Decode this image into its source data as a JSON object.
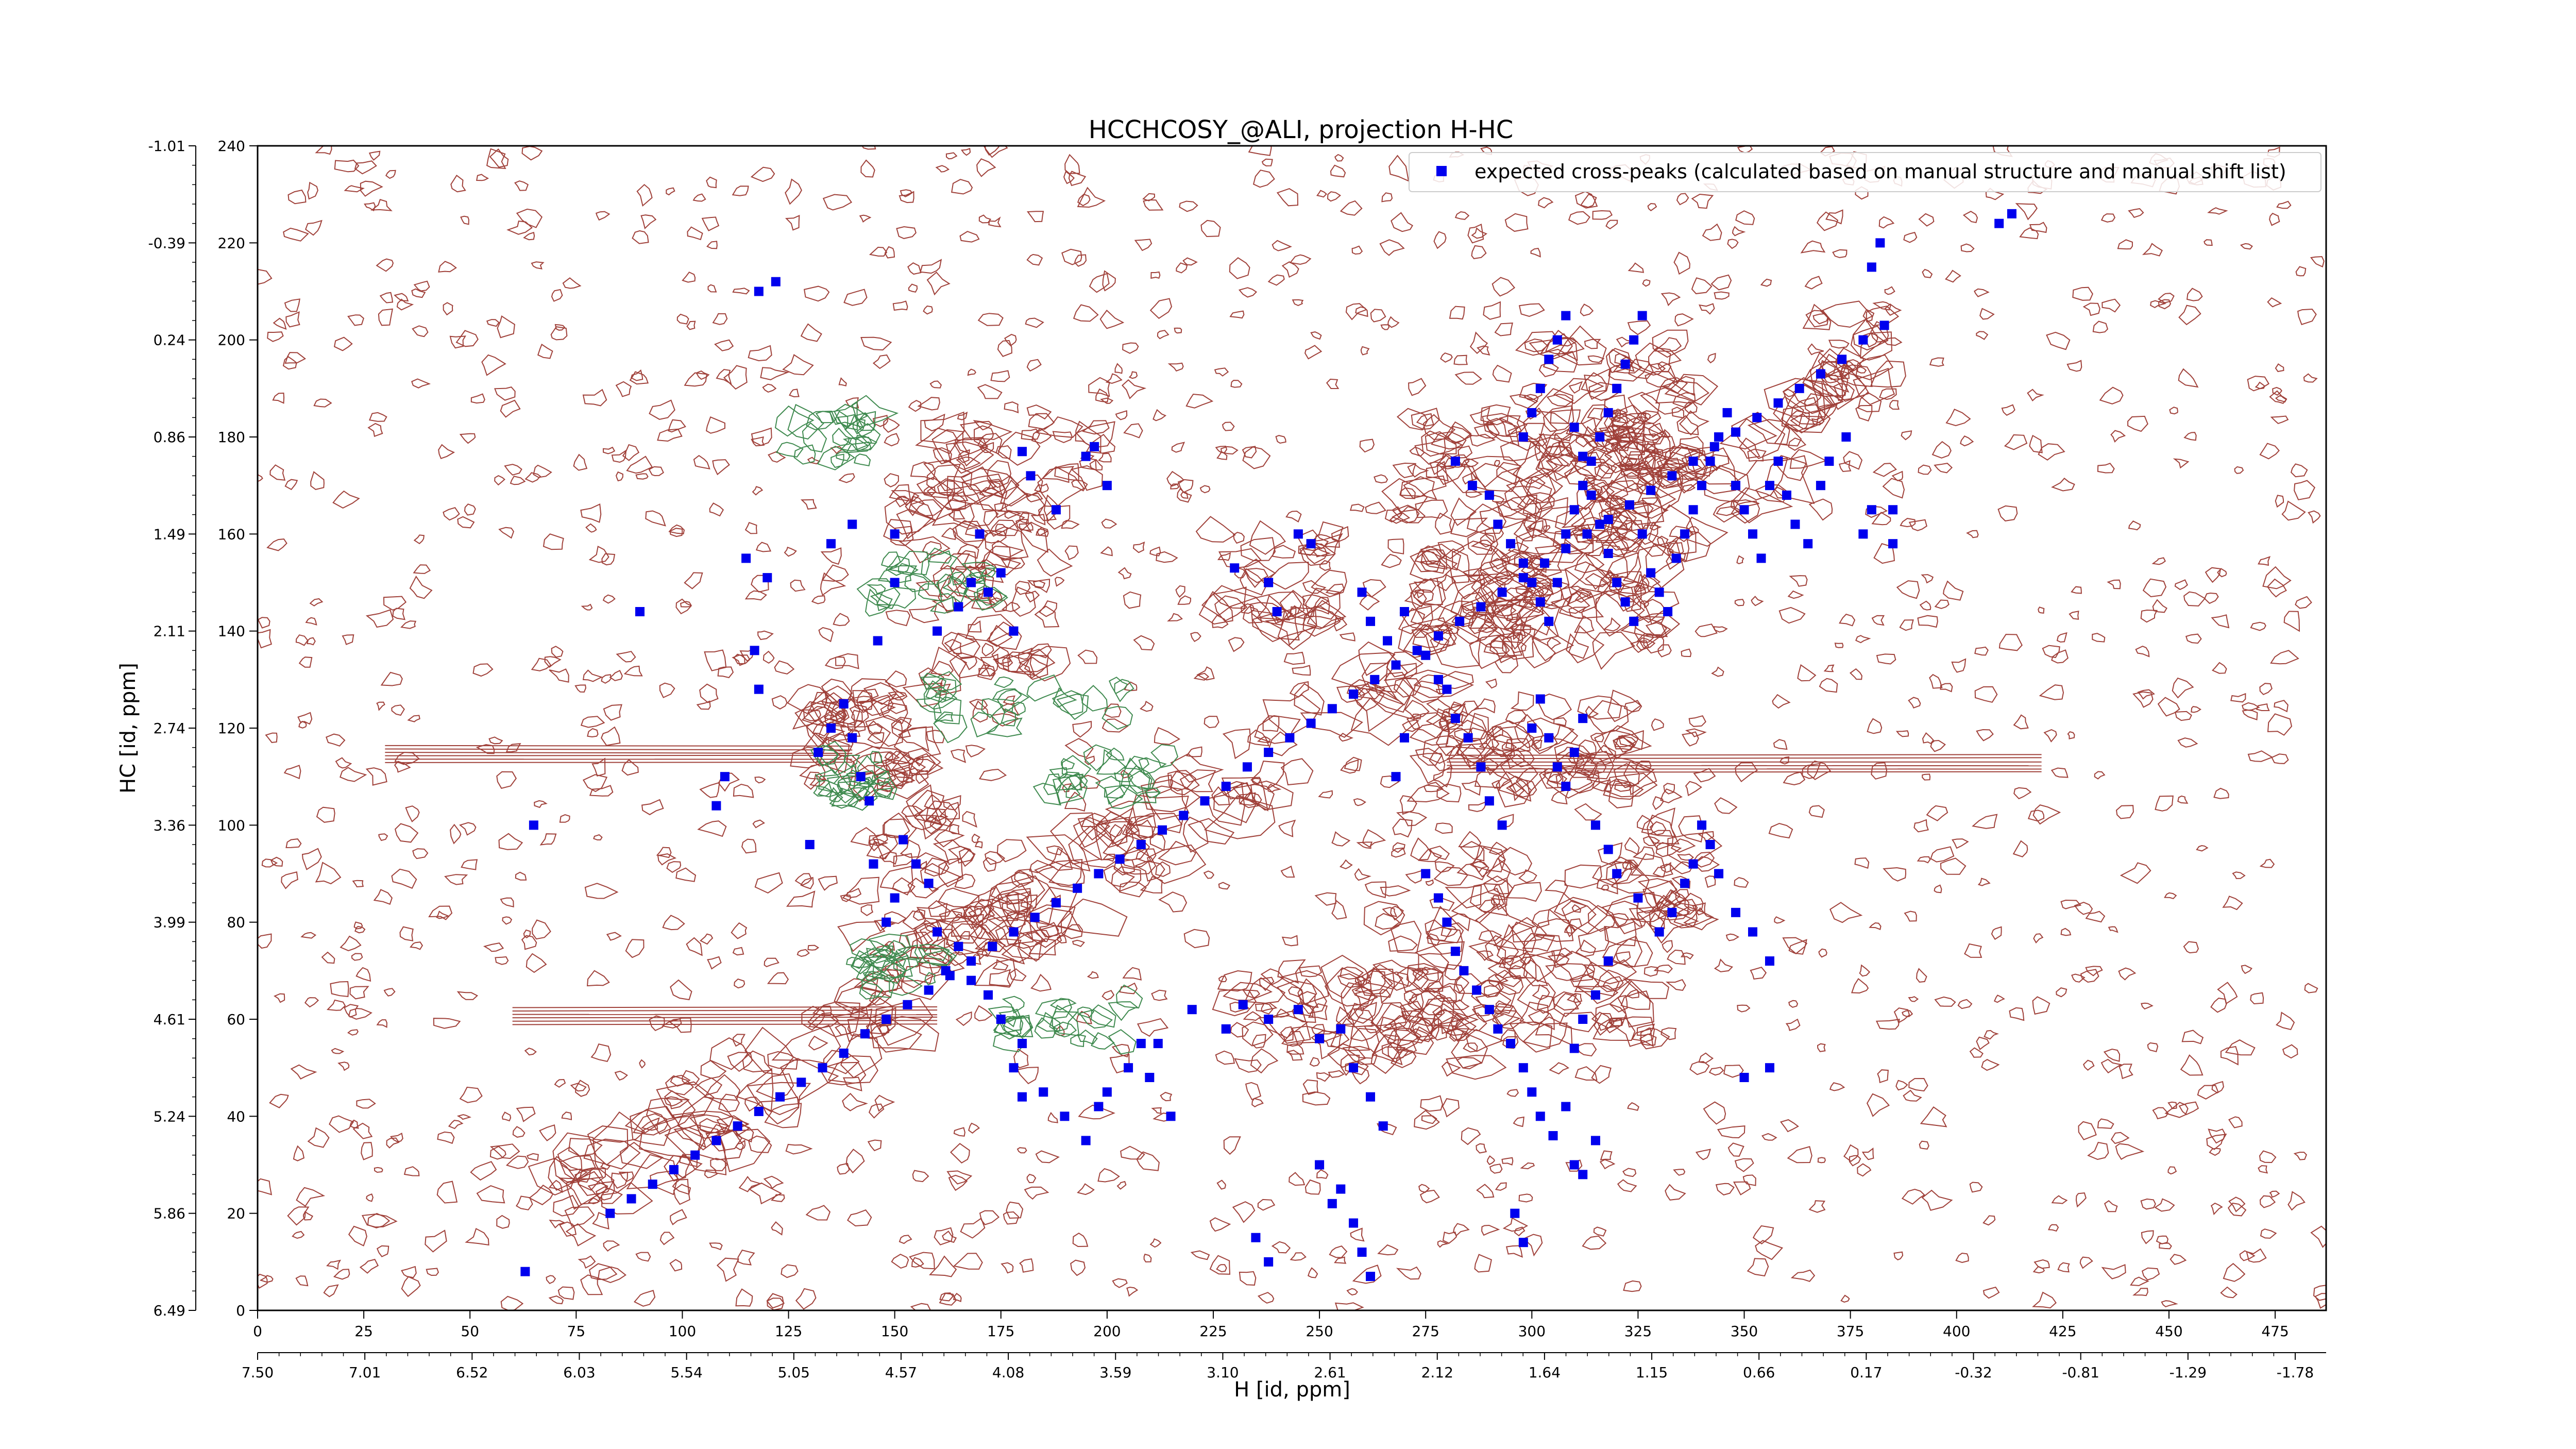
{
  "chart_data": {
    "type": "scatter",
    "title": "HCCHCOSY_@ALI, projection H-HC",
    "xlabel": "H [id, ppm]",
    "ylabel": "HC [id, ppm]",
    "xlim": [
      0,
      487
    ],
    "ylim": [
      0,
      240
    ],
    "x_ticks": [
      "0",
      "25",
      "50",
      "75",
      "100",
      "125",
      "150",
      "175",
      "200",
      "225",
      "250",
      "275",
      "300",
      "325",
      "350",
      "375",
      "400",
      "425",
      "450",
      "475"
    ],
    "x_tick_values": [
      0,
      25,
      50,
      75,
      100,
      125,
      150,
      175,
      200,
      225,
      250,
      275,
      300,
      325,
      350,
      375,
      400,
      425,
      450,
      475
    ],
    "y_ticks": [
      "0",
      "20",
      "40",
      "60",
      "80",
      "100",
      "120",
      "140",
      "160",
      "180",
      "200",
      "220",
      "240"
    ],
    "y_tick_values": [
      0,
      20,
      40,
      60,
      80,
      100,
      120,
      140,
      160,
      180,
      200,
      220,
      240
    ],
    "x_ppm_ticks": [
      "7.50",
      "7.01",
      "6.52",
      "6.03",
      "5.54",
      "5.05",
      "4.57",
      "4.08",
      "3.59",
      "3.10",
      "2.61",
      "2.12",
      "1.64",
      "1.15",
      "0.66",
      "0.17",
      "-0.32",
      "-0.81",
      "-1.29",
      "-1.78"
    ],
    "y_ppm_ticks": [
      "6.49",
      "5.86",
      "5.24",
      "4.61",
      "3.99",
      "3.36",
      "2.74",
      "2.11",
      "1.49",
      "0.86",
      "0.24",
      "-0.39",
      "-1.01"
    ],
    "legend": {
      "position": "top-right",
      "entries": [
        "expected cross-peaks (calculated based on manual structure and manual shift list)"
      ]
    },
    "grid": false,
    "colors": {
      "cross_peaks": "#0000ee",
      "positive_contours": "#a0413a",
      "negative_contours": "#3f8a4f"
    },
    "series": [
      {
        "name": "expected cross-peaks (calculated based on manual structure and manual shift list)",
        "points": [
          [
            63,
            8
          ],
          [
            83,
            20
          ],
          [
            88,
            23
          ],
          [
            93,
            26
          ],
          [
            98,
            29
          ],
          [
            103,
            32
          ],
          [
            108,
            35
          ],
          [
            113,
            38
          ],
          [
            118,
            41
          ],
          [
            123,
            44
          ],
          [
            128,
            47
          ],
          [
            133,
            50
          ],
          [
            138,
            53
          ],
          [
            143,
            57
          ],
          [
            148,
            60
          ],
          [
            153,
            63
          ],
          [
            158,
            66
          ],
          [
            163,
            69
          ],
          [
            168,
            72
          ],
          [
            173,
            75
          ],
          [
            178,
            78
          ],
          [
            183,
            81
          ],
          [
            188,
            84
          ],
          [
            193,
            87
          ],
          [
            198,
            90
          ],
          [
            203,
            93
          ],
          [
            208,
            96
          ],
          [
            213,
            99
          ],
          [
            218,
            102
          ],
          [
            223,
            105
          ],
          [
            228,
            108
          ],
          [
            233,
            112
          ],
          [
            238,
            115
          ],
          [
            243,
            118
          ],
          [
            248,
            121
          ],
          [
            253,
            124
          ],
          [
            258,
            127
          ],
          [
            263,
            130
          ],
          [
            268,
            133
          ],
          [
            273,
            136
          ],
          [
            278,
            139
          ],
          [
            283,
            142
          ],
          [
            288,
            145
          ],
          [
            293,
            148
          ],
          [
            298,
            151
          ],
          [
            303,
            154
          ],
          [
            308,
            157
          ],
          [
            313,
            160
          ],
          [
            318,
            163
          ],
          [
            323,
            166
          ],
          [
            328,
            169
          ],
          [
            333,
            172
          ],
          [
            338,
            175
          ],
          [
            343,
            178
          ],
          [
            348,
            181
          ],
          [
            353,
            184
          ],
          [
            358,
            187
          ],
          [
            363,
            190
          ],
          [
            368,
            193
          ],
          [
            373,
            196
          ],
          [
            378,
            200
          ],
          [
            383,
            203
          ],
          [
            65,
            100
          ],
          [
            90,
            144
          ],
          [
            115,
            155
          ],
          [
            117,
            136
          ],
          [
            120,
            151
          ],
          [
            118,
            128
          ],
          [
            118,
            210
          ],
          [
            122,
            212
          ],
          [
            135,
            158
          ],
          [
            140,
            162
          ],
          [
            146,
            138
          ],
          [
            150,
            160
          ],
          [
            150,
            150
          ],
          [
            160,
            140
          ],
          [
            165,
            145
          ],
          [
            168,
            150
          ],
          [
            170,
            160
          ],
          [
            172,
            148
          ],
          [
            175,
            152
          ],
          [
            178,
            140
          ],
          [
            180,
            177
          ],
          [
            182,
            172
          ],
          [
            188,
            165
          ],
          [
            195,
            176
          ],
          [
            197,
            178
          ],
          [
            200,
            170
          ],
          [
            110,
            110
          ],
          [
            108,
            104
          ],
          [
            130,
            96
          ],
          [
            132,
            115
          ],
          [
            135,
            120
          ],
          [
            138,
            125
          ],
          [
            140,
            118
          ],
          [
            142,
            110
          ],
          [
            144,
            105
          ],
          [
            145,
            92
          ],
          [
            148,
            80
          ],
          [
            150,
            85
          ],
          [
            152,
            97
          ],
          [
            155,
            92
          ],
          [
            158,
            88
          ],
          [
            160,
            78
          ],
          [
            162,
            70
          ],
          [
            165,
            75
          ],
          [
            168,
            68
          ],
          [
            172,
            65
          ],
          [
            175,
            60
          ],
          [
            180,
            55
          ],
          [
            185,
            45
          ],
          [
            190,
            40
          ],
          [
            195,
            35
          ],
          [
            198,
            42
          ],
          [
            210,
            48
          ],
          [
            212,
            55
          ],
          [
            215,
            40
          ],
          [
            220,
            62
          ],
          [
            228,
            58
          ],
          [
            232,
            63
          ],
          [
            238,
            60
          ],
          [
            245,
            62
          ],
          [
            250,
            56
          ],
          [
            255,
            58
          ],
          [
            258,
            50
          ],
          [
            262,
            44
          ],
          [
            265,
            38
          ],
          [
            230,
            153
          ],
          [
            238,
            150
          ],
          [
            240,
            144
          ],
          [
            245,
            160
          ],
          [
            248,
            158
          ],
          [
            260,
            148
          ],
          [
            262,
            142
          ],
          [
            266,
            138
          ],
          [
            270,
            144
          ],
          [
            275,
            135
          ],
          [
            278,
            130
          ],
          [
            280,
            128
          ],
          [
            282,
            122
          ],
          [
            270,
            118
          ],
          [
            268,
            110
          ],
          [
            285,
            118
          ],
          [
            288,
            112
          ],
          [
            290,
            105
          ],
          [
            293,
            100
          ],
          [
            275,
            90
          ],
          [
            278,
            85
          ],
          [
            280,
            80
          ],
          [
            282,
            74
          ],
          [
            284,
            70
          ],
          [
            287,
            66
          ],
          [
            290,
            62
          ],
          [
            292,
            58
          ],
          [
            295,
            55
          ],
          [
            298,
            50
          ],
          [
            300,
            45
          ],
          [
            302,
            40
          ],
          [
            305,
            36
          ],
          [
            308,
            42
          ],
          [
            310,
            54
          ],
          [
            312,
            60
          ],
          [
            315,
            65
          ],
          [
            318,
            72
          ],
          [
            282,
            175
          ],
          [
            286,
            170
          ],
          [
            290,
            168
          ],
          [
            292,
            162
          ],
          [
            295,
            158
          ],
          [
            298,
            154
          ],
          [
            300,
            150
          ],
          [
            302,
            146
          ],
          [
            304,
            142
          ],
          [
            306,
            150
          ],
          [
            308,
            160
          ],
          [
            310,
            165
          ],
          [
            312,
            170
          ],
          [
            314,
            175
          ],
          [
            316,
            180
          ],
          [
            318,
            185
          ],
          [
            320,
            190
          ],
          [
            322,
            195
          ],
          [
            324,
            200
          ],
          [
            326,
            205
          ],
          [
            298,
            180
          ],
          [
            300,
            185
          ],
          [
            302,
            190
          ],
          [
            304,
            196
          ],
          [
            306,
            200
          ],
          [
            308,
            205
          ],
          [
            310,
            182
          ],
          [
            312,
            176
          ],
          [
            314,
            168
          ],
          [
            316,
            162
          ],
          [
            318,
            156
          ],
          [
            320,
            150
          ],
          [
            322,
            146
          ],
          [
            324,
            142
          ],
          [
            326,
            160
          ],
          [
            328,
            152
          ],
          [
            330,
            148
          ],
          [
            332,
            144
          ],
          [
            334,
            155
          ],
          [
            336,
            160
          ],
          [
            338,
            165
          ],
          [
            340,
            170
          ],
          [
            342,
            175
          ],
          [
            344,
            180
          ],
          [
            346,
            185
          ],
          [
            348,
            170
          ],
          [
            350,
            165
          ],
          [
            352,
            160
          ],
          [
            354,
            155
          ],
          [
            356,
            170
          ],
          [
            358,
            175
          ],
          [
            360,
            168
          ],
          [
            362,
            162
          ],
          [
            365,
            158
          ],
          [
            368,
            170
          ],
          [
            370,
            175
          ],
          [
            374,
            180
          ],
          [
            378,
            160
          ],
          [
            380,
            165
          ],
          [
            385,
            158
          ],
          [
            300,
            120
          ],
          [
            302,
            126
          ],
          [
            304,
            118
          ],
          [
            306,
            112
          ],
          [
            308,
            108
          ],
          [
            310,
            115
          ],
          [
            312,
            122
          ],
          [
            315,
            100
          ],
          [
            318,
            95
          ],
          [
            320,
            90
          ],
          [
            325,
            85
          ],
          [
            330,
            78
          ],
          [
            333,
            82
          ],
          [
            336,
            88
          ],
          [
            338,
            92
          ],
          [
            340,
            100
          ],
          [
            342,
            96
          ],
          [
            344,
            90
          ],
          [
            348,
            82
          ],
          [
            352,
            78
          ],
          [
            356,
            72
          ],
          [
            350,
            48
          ],
          [
            356,
            50
          ],
          [
            310,
            30
          ],
          [
            312,
            28
          ],
          [
            315,
            35
          ],
          [
            296,
            20
          ],
          [
            298,
            14
          ],
          [
            380,
            215
          ],
          [
            382,
            220
          ],
          [
            410,
            224
          ],
          [
            413,
            226
          ],
          [
            385,
            165
          ],
          [
            255,
            25
          ],
          [
            258,
            18
          ],
          [
            260,
            12
          ],
          [
            262,
            7
          ],
          [
            235,
            15
          ],
          [
            238,
            10
          ],
          [
            250,
            30
          ],
          [
            253,
            22
          ],
          [
            178,
            50
          ],
          [
            180,
            44
          ],
          [
            200,
            45
          ],
          [
            205,
            50
          ],
          [
            208,
            55
          ]
        ]
      }
    ]
  }
}
